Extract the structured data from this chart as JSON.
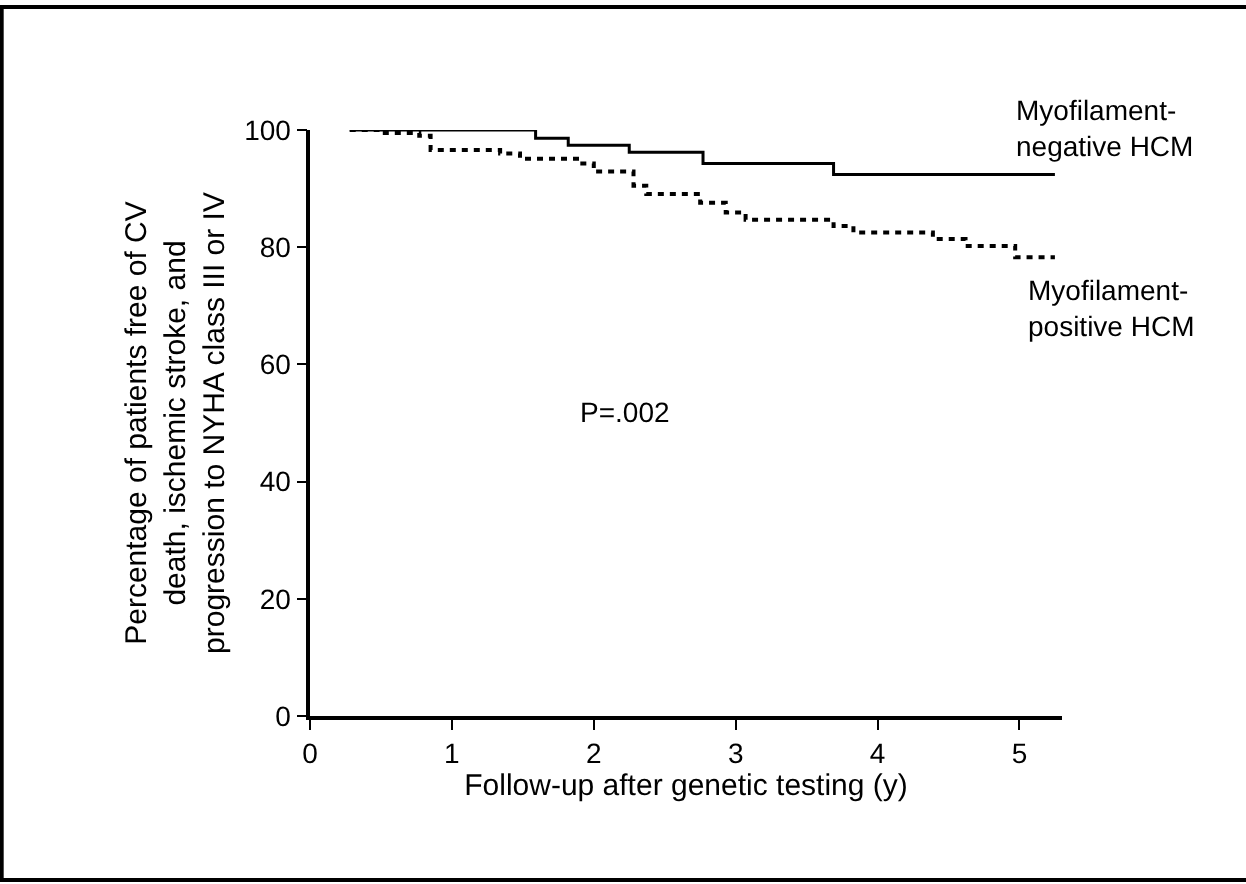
{
  "chart_data": {
    "type": "step",
    "xlabel": "Follow-up after genetic testing (y)",
    "ylabel": "Percentage of patients free of CV\ndeath, ischemic stroke, and\nprogression to NYHA class III or IV",
    "xlim": [
      0,
      5.3
    ],
    "xticks": [
      0,
      1,
      2,
      3,
      4,
      5
    ],
    "ylim": [
      0,
      100
    ],
    "yticks": [
      0,
      20,
      40,
      60,
      80,
      100
    ],
    "legend": false,
    "marker": "none",
    "annotations": [
      "P=.002"
    ],
    "series": [
      {
        "name": "Myofilament-\nnegative HCM",
        "color": "#000000",
        "line_style": "solid",
        "x": [
          0.28,
          1.59,
          1.82,
          2.25,
          2.77,
          3.69,
          5.25
        ],
        "values": [
          100,
          98.6,
          97.4,
          96.2,
          94.3,
          92.4,
          92.4
        ]
      },
      {
        "name": "Myofilament-\npositive HCM",
        "color": "#000000",
        "line_style": "dotted",
        "x": [
          0.28,
          0.49,
          0.77,
          0.85,
          1.34,
          1.48,
          1.9,
          2.0,
          2.28,
          2.37,
          2.75,
          2.93,
          3.07,
          3.69,
          3.83,
          4.39,
          4.62,
          4.97,
          5.25
        ],
        "values": [
          100,
          99.5,
          99,
          96.6,
          96.0,
          95.1,
          94.3,
          92.9,
          90.5,
          89.1,
          87.6,
          85.9,
          84.7,
          83.6,
          82.5,
          81.4,
          80.2,
          78.3,
          78.3
        ]
      }
    ]
  }
}
